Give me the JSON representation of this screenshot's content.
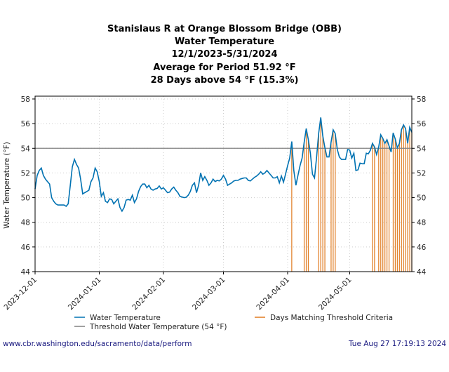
{
  "footer": {
    "url": "www.cbr.washington.edu/sacramento/data/perform",
    "timestamp": "Tue Aug 27 17:19:13 2024"
  },
  "chart_data": {
    "type": "line",
    "title": [
      "Stanislaus R at Orange Blossom Bridge (OBB)",
      "Water Temperature",
      "12/1/2023-5/31/2024",
      "Average for Period 51.92 °F",
      "28 Days above 54 °F (15.3%)"
    ],
    "xlabel": "",
    "ylabel": "Water Temperature (°F)",
    "ylim": [
      44,
      58
    ],
    "yticks": [
      "44",
      "46",
      "48",
      "50",
      "52",
      "54",
      "56",
      "58"
    ],
    "xticks": [
      "2023-12-01",
      "2024-01-01",
      "2024-02-01",
      "2024-03-01",
      "2024-04-01",
      "2024-05-01"
    ],
    "xlim": [
      "2023-12-01",
      "2024-05-31"
    ],
    "grid": true,
    "right_axis": true,
    "legend_placement": "bottom",
    "threshold": 54,
    "colors": {
      "temperature": "#0072b2",
      "threshold": "#808080",
      "days": "#e07b20"
    },
    "legend": [
      "Water Temperature",
      "Threshold Water Temperature (54 °F)",
      "Days Matching Threshold Criteria"
    ],
    "x": [
      "2023-12-01",
      "2023-12-02",
      "2023-12-03",
      "2023-12-04",
      "2023-12-05",
      "2023-12-06",
      "2023-12-07",
      "2023-12-08",
      "2023-12-09",
      "2023-12-10",
      "2023-12-11",
      "2023-12-12",
      "2023-12-13",
      "2023-12-14",
      "2023-12-15",
      "2023-12-16",
      "2023-12-17",
      "2023-12-18",
      "2023-12-19",
      "2023-12-20",
      "2023-12-21",
      "2023-12-22",
      "2023-12-23",
      "2023-12-24",
      "2023-12-25",
      "2023-12-26",
      "2023-12-27",
      "2023-12-28",
      "2023-12-29",
      "2023-12-30",
      "2023-12-31",
      "2024-01-01",
      "2024-01-02",
      "2024-01-03",
      "2024-01-04",
      "2024-01-05",
      "2024-01-06",
      "2024-01-07",
      "2024-01-08",
      "2024-01-09",
      "2024-01-10",
      "2024-01-11",
      "2024-01-12",
      "2024-01-13",
      "2024-01-14",
      "2024-01-15",
      "2024-01-16",
      "2024-01-17",
      "2024-01-18",
      "2024-01-19",
      "2024-01-20",
      "2024-01-21",
      "2024-01-22",
      "2024-01-23",
      "2024-01-24",
      "2024-01-25",
      "2024-01-26",
      "2024-01-27",
      "2024-01-28",
      "2024-01-29",
      "2024-01-30",
      "2024-01-31",
      "2024-02-01",
      "2024-02-02",
      "2024-02-03",
      "2024-02-04",
      "2024-02-05",
      "2024-02-06",
      "2024-02-07",
      "2024-02-08",
      "2024-02-09",
      "2024-02-10",
      "2024-02-11",
      "2024-02-12",
      "2024-02-13",
      "2024-02-14",
      "2024-02-15",
      "2024-02-16",
      "2024-02-17",
      "2024-02-18",
      "2024-02-19",
      "2024-02-20",
      "2024-02-21",
      "2024-02-22",
      "2024-02-23",
      "2024-02-24",
      "2024-02-25",
      "2024-02-26",
      "2024-02-27",
      "2024-02-28",
      "2024-02-29",
      "2024-03-01",
      "2024-03-02",
      "2024-03-03",
      "2024-03-04",
      "2024-03-05",
      "2024-03-06",
      "2024-03-07",
      "2024-03-08",
      "2024-03-09",
      "2024-03-10",
      "2024-03-11",
      "2024-03-12",
      "2024-03-13",
      "2024-03-14",
      "2024-03-15",
      "2024-03-16",
      "2024-03-17",
      "2024-03-18",
      "2024-03-19",
      "2024-03-20",
      "2024-03-21",
      "2024-03-22",
      "2024-03-23",
      "2024-03-24",
      "2024-03-25",
      "2024-03-26",
      "2024-03-27",
      "2024-03-28",
      "2024-03-29",
      "2024-03-30",
      "2024-03-31",
      "2024-04-01",
      "2024-04-02",
      "2024-04-03",
      "2024-04-04",
      "2024-04-05",
      "2024-04-06",
      "2024-04-07",
      "2024-04-08",
      "2024-04-09",
      "2024-04-10",
      "2024-04-11",
      "2024-04-12",
      "2024-04-13",
      "2024-04-14",
      "2024-04-15",
      "2024-04-16",
      "2024-04-17",
      "2024-04-18",
      "2024-04-19",
      "2024-04-20",
      "2024-04-21",
      "2024-04-22",
      "2024-04-23",
      "2024-04-24",
      "2024-04-25",
      "2024-04-26",
      "2024-04-27",
      "2024-04-28",
      "2024-04-29",
      "2024-04-30",
      "2024-05-01",
      "2024-05-02",
      "2024-05-03",
      "2024-05-04",
      "2024-05-05",
      "2024-05-06",
      "2024-05-07",
      "2024-05-08",
      "2024-05-09",
      "2024-05-10",
      "2024-05-11",
      "2024-05-12",
      "2024-05-13",
      "2024-05-14",
      "2024-05-15",
      "2024-05-16",
      "2024-05-17",
      "2024-05-18",
      "2024-05-19",
      "2024-05-20",
      "2024-05-21",
      "2024-05-22",
      "2024-05-23",
      "2024-05-24",
      "2024-05-25",
      "2024-05-26",
      "2024-05-27",
      "2024-05-28",
      "2024-05-29",
      "2024-05-30",
      "2024-05-31"
    ],
    "series": [
      {
        "name": "Water Temperature",
        "values": [
          50.7,
          51.8,
          52.2,
          52.4,
          51.8,
          51.5,
          51.3,
          51.1,
          50.0,
          49.7,
          49.5,
          49.4,
          49.4,
          49.4,
          49.4,
          49.3,
          49.5,
          51.0,
          52.5,
          53.1,
          52.7,
          52.4,
          51.5,
          50.3,
          50.4,
          50.5,
          50.6,
          51.3,
          51.6,
          52.4,
          52.1,
          51.3,
          50.1,
          50.4,
          49.7,
          49.6,
          49.9,
          49.85,
          49.5,
          49.7,
          49.9,
          49.2,
          48.9,
          49.2,
          49.8,
          49.85,
          49.8,
          50.2,
          49.6,
          49.9,
          50.5,
          50.9,
          51.1,
          51.1,
          50.8,
          51.0,
          50.7,
          50.6,
          50.7,
          50.75,
          50.95,
          50.7,
          50.8,
          50.6,
          50.4,
          50.45,
          50.7,
          50.85,
          50.6,
          50.4,
          50.1,
          50.05,
          50.0,
          50.03,
          50.2,
          50.5,
          51.0,
          51.2,
          50.4,
          51.0,
          52.0,
          51.4,
          51.7,
          51.4,
          51.0,
          51.2,
          51.5,
          51.3,
          51.4,
          51.35,
          51.5,
          51.8,
          51.5,
          51.0,
          51.1,
          51.2,
          51.35,
          51.4,
          51.4,
          51.5,
          51.55,
          51.6,
          51.6,
          51.4,
          51.35,
          51.5,
          51.65,
          51.75,
          51.9,
          52.1,
          51.9,
          52.0,
          52.2,
          52.0,
          51.8,
          51.6,
          51.6,
          51.7,
          51.2,
          51.75,
          51.25,
          51.9,
          52.6,
          53.2,
          54.55,
          52.2,
          51.0,
          51.8,
          52.6,
          53.2,
          54.5,
          55.6,
          54.7,
          53.6,
          51.9,
          51.6,
          53.3,
          55.2,
          56.5,
          55.0,
          54.05,
          53.3,
          53.3,
          54.5,
          55.5,
          55.2,
          53.9,
          53.3,
          53.1,
          53.1,
          53.1,
          53.9,
          53.85,
          53.2,
          53.6,
          52.2,
          52.25,
          52.8,
          52.75,
          52.75,
          53.6,
          53.55,
          53.85,
          54.4,
          54.1,
          53.5,
          54.1,
          55.1,
          54.8,
          54.4,
          54.7,
          54.2,
          53.7,
          55.25,
          54.75,
          54.05,
          54.4,
          55.5,
          55.9,
          55.6,
          54.4,
          55.7,
          55.3
        ]
      }
    ]
  }
}
